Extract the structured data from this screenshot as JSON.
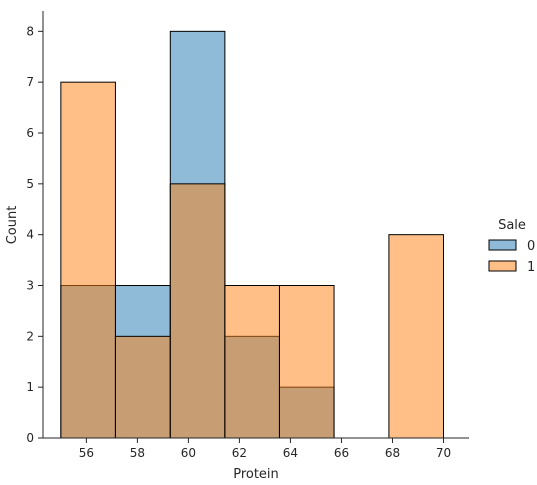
{
  "chart_data": {
    "type": "bar",
    "subtype": "histogram",
    "xlabel": "Protein",
    "ylabel": "Count",
    "xlim": [
      54.3,
      71.0
    ],
    "ylim": [
      0,
      8.4
    ],
    "xticks": [
      56,
      58,
      60,
      62,
      64,
      66,
      68,
      70
    ],
    "yticks": [
      0,
      1,
      2,
      3,
      4,
      5,
      6,
      7,
      8
    ],
    "bin_edges": [
      55.0,
      57.14,
      59.29,
      61.43,
      63.57,
      65.71,
      67.86,
      70.0
    ],
    "legend_title": "Sale",
    "legend_position": "right",
    "series": [
      {
        "name": "0",
        "color": "#1f77b4",
        "values": [
          3,
          3,
          8,
          2,
          1,
          0,
          0
        ]
      },
      {
        "name": "1",
        "color": "#ff7f0e",
        "values": [
          7,
          2,
          5,
          3,
          3,
          0,
          4
        ]
      }
    ]
  }
}
